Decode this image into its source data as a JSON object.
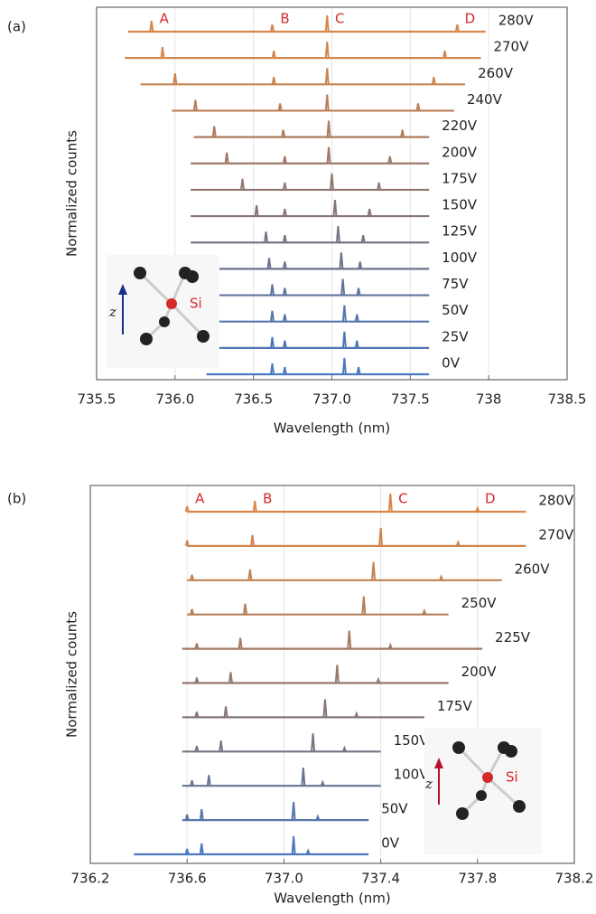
{
  "chart_data": [
    {
      "type": "spectra",
      "panel_label": "(a)",
      "xlabel": "Wavelength (nm)",
      "ylabel": "Normalized counts",
      "xlim": [
        735.5,
        738.5
      ],
      "xticks": [
        735.5,
        {
          "value": 736,
          "label": "736.0"
        },
        736.5,
        {
          "value": 737,
          "label": "737.0"
        },
        737.5,
        738,
        738.5
      ],
      "grid": true,
      "peak_labels": [
        "A",
        "B",
        "C",
        "D"
      ],
      "inset_label": "Si",
      "inset_axis": "z",
      "series": [
        {
          "name": "280V",
          "color": "#d9874a",
          "range": [
            735.7,
            737.98
          ],
          "peaks": [
            735.85,
            736.62,
            736.97,
            737.8
          ]
        },
        {
          "name": "270V",
          "color": "#d4864c",
          "range": [
            735.68,
            737.95
          ],
          "peaks": [
            735.92,
            736.63,
            736.97,
            737.72
          ]
        },
        {
          "name": "260V",
          "color": "#c98450",
          "range": [
            735.78,
            737.85
          ],
          "peaks": [
            736.0,
            736.63,
            736.97,
            737.65
          ]
        },
        {
          "name": "240V",
          "color": "#bc7f56",
          "range": [
            735.98,
            737.78
          ],
          "peaks": [
            736.13,
            736.67,
            736.97,
            737.55
          ]
        },
        {
          "name": "220V",
          "color": "#ae7a5c",
          "range": [
            736.12,
            737.62
          ],
          "peaks": [
            736.25,
            736.69,
            736.98,
            737.45
          ]
        },
        {
          "name": "200V",
          "color": "#a07866",
          "range": [
            736.1,
            737.62
          ],
          "peaks": [
            736.33,
            736.7,
            736.98,
            737.37
          ]
        },
        {
          "name": "175V",
          "color": "#92766f",
          "range": [
            736.1,
            737.62
          ],
          "peaks": [
            736.43,
            736.7,
            737.0,
            737.3
          ]
        },
        {
          "name": "150V",
          "color": "#85757a",
          "range": [
            736.1,
            737.62
          ],
          "peaks": [
            736.52,
            736.7,
            737.02,
            737.24
          ]
        },
        {
          "name": "125V",
          "color": "#787484",
          "range": [
            736.1,
            737.62
          ],
          "peaks": [
            736.58,
            736.7,
            737.04,
            737.2
          ]
        },
        {
          "name": "100V",
          "color": "#6c7490",
          "range": [
            736.1,
            737.62
          ],
          "peaks": [
            736.6,
            736.7,
            737.06,
            737.18
          ]
        },
        {
          "name": "75V",
          "color": "#5f749e",
          "range": [
            736.2,
            737.62
          ],
          "peaks": [
            736.62,
            736.7,
            737.07,
            737.17
          ]
        },
        {
          "name": "50V",
          "color": "#5676ab",
          "range": [
            736.2,
            737.62
          ],
          "peaks": [
            736.62,
            736.7,
            737.08,
            737.16
          ]
        },
        {
          "name": "25V",
          "color": "#4f77b6",
          "range": [
            736.2,
            737.62
          ],
          "peaks": [
            736.62,
            736.7,
            737.08,
            737.16
          ]
        },
        {
          "name": "0V",
          "color": "#4a79c0",
          "range": [
            736.2,
            737.62
          ],
          "peaks": [
            736.62,
            736.7,
            737.08,
            737.17
          ]
        }
      ]
    },
    {
      "type": "spectra",
      "panel_label": "(b)",
      "xlabel": "Wavelength (nm)",
      "ylabel": "Normalized counts",
      "xlim": [
        736.2,
        738.2
      ],
      "xticks": [
        736.2,
        736.6,
        {
          "value": 737,
          "label": "737.0"
        },
        737.4,
        737.8,
        738.2
      ],
      "grid": true,
      "peak_labels": [
        "A",
        "B",
        "C",
        "D"
      ],
      "inset_label": "Si",
      "inset_axis": "z",
      "series": [
        {
          "name": "280V",
          "color": "#d9874a",
          "range": [
            736.6,
            738.0
          ],
          "peaks": [
            736.6,
            736.88,
            737.44,
            737.8
          ]
        },
        {
          "name": "270V",
          "color": "#d1854d",
          "range": [
            736.6,
            738.0
          ],
          "peaks": [
            736.6,
            736.87,
            737.4,
            737.72
          ]
        },
        {
          "name": "260V",
          "color": "#c48352",
          "range": [
            736.6,
            737.9
          ],
          "peaks": [
            736.62,
            736.86,
            737.37,
            737.65
          ]
        },
        {
          "name": "250V",
          "color": "#b57e58",
          "range": [
            736.6,
            737.68
          ],
          "peaks": [
            736.62,
            736.84,
            737.33,
            737.58
          ]
        },
        {
          "name": "225V",
          "color": "#a57a62",
          "range": [
            736.58,
            737.82
          ],
          "peaks": [
            736.64,
            736.82,
            737.27,
            737.44
          ]
        },
        {
          "name": "200V",
          "color": "#96776c",
          "range": [
            736.58,
            737.68
          ],
          "peaks": [
            736.64,
            736.78,
            737.22,
            737.39
          ]
        },
        {
          "name": "175V",
          "color": "#877577",
          "range": [
            736.58,
            737.58
          ],
          "peaks": [
            736.64,
            736.76,
            737.17,
            737.3
          ]
        },
        {
          "name": "150V",
          "color": "#787484",
          "range": [
            736.58,
            737.4
          ],
          "peaks": [
            736.64,
            736.74,
            737.12,
            737.25
          ]
        },
        {
          "name": "100V",
          "color": "#687494",
          "range": [
            736.58,
            737.4
          ],
          "peaks": [
            736.62,
            736.69,
            737.08,
            737.16
          ]
        },
        {
          "name": "50V",
          "color": "#5776aa",
          "range": [
            736.58,
            737.35
          ],
          "peaks": [
            736.6,
            736.66,
            737.04,
            737.14
          ]
        },
        {
          "name": "0V",
          "color": "#4a79c0",
          "range": [
            736.38,
            737.35
          ],
          "peaks": [
            736.6,
            736.66,
            737.04,
            737.1
          ]
        }
      ]
    }
  ]
}
